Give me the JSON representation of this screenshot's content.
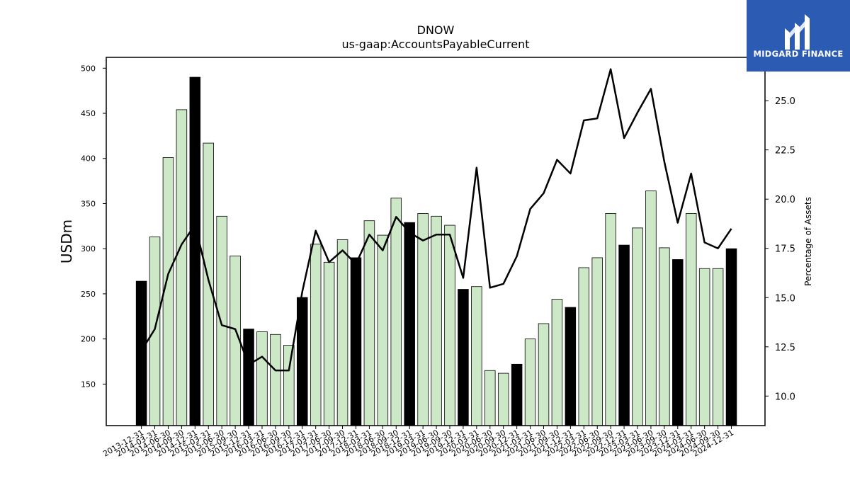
{
  "chart_data": {
    "type": "bar+line",
    "title": "DNOW",
    "subtitle": "us-gaap:AccountsPayableCurrent",
    "ylabel": "USDm",
    "y2label": "Percentage of Assets",
    "ylim": [
      104,
      512
    ],
    "y2lim": [
      8.5,
      27.2
    ],
    "yticks": [
      150,
      200,
      250,
      300,
      350,
      400,
      450,
      500
    ],
    "y2ticks": [
      10.0,
      12.5,
      15.0,
      17.5,
      20.0,
      22.5,
      25.0
    ],
    "categories": [
      "2013-12-31",
      "2014-03-31",
      "2014-06-30",
      "2014-09-30",
      "2014-12-31",
      "2015-03-31",
      "2015-06-30",
      "2015-09-30",
      "2015-12-31",
      "2016-03-31",
      "2016-06-30",
      "2016-09-30",
      "2016-12-31",
      "2017-03-31",
      "2017-06-30",
      "2017-09-30",
      "2017-12-31",
      "2018-03-31",
      "2018-06-30",
      "2018-09-30",
      "2018-12-31",
      "2019-03-31",
      "2019-06-30",
      "2019-09-30",
      "2019-12-31",
      "2020-03-31",
      "2020-06-30",
      "2020-09-30",
      "2020-12-31",
      "2021-03-31",
      "2021-06-30",
      "2021-09-30",
      "2021-12-31",
      "2022-03-31",
      "2022-06-30",
      "2022-09-30",
      "2022-12-31",
      "2023-03-31",
      "2023-06-30",
      "2023-09-30",
      "2023-12-31",
      "2024-03-31",
      "2024-06-30",
      "2024-09-30",
      "2024-12-31"
    ],
    "series": [
      {
        "kind": "bar",
        "values": [
          264,
          313,
          401,
          454,
          490,
          417,
          336,
          292,
          211,
          208,
          205,
          193,
          246,
          305,
          285,
          310,
          290,
          331,
          315,
          356,
          329,
          339,
          336,
          326,
          255,
          258,
          165,
          162,
          172,
          200,
          217,
          244,
          235,
          279,
          290,
          339,
          304,
          323,
          364,
          301,
          288,
          339,
          278,
          278,
          300
        ],
        "highlight": [
          true,
          false,
          false,
          false,
          true,
          false,
          false,
          false,
          true,
          false,
          false,
          false,
          true,
          false,
          false,
          false,
          true,
          false,
          false,
          false,
          true,
          false,
          false,
          false,
          true,
          false,
          false,
          false,
          true,
          false,
          false,
          false,
          true,
          false,
          false,
          false,
          true,
          false,
          false,
          false,
          true,
          false,
          false,
          false,
          true
        ]
      },
      {
        "kind": "line",
        "axis": "right",
        "values": [
          12.3,
          13.4,
          16.2,
          17.7,
          18.7,
          15.9,
          13.6,
          13.4,
          11.6,
          12.0,
          11.3,
          11.3,
          15.3,
          18.4,
          16.8,
          17.4,
          16.7,
          18.2,
          17.4,
          19.1,
          18.3,
          17.9,
          18.2,
          18.2,
          16.0,
          21.6,
          15.5,
          15.7,
          17.1,
          19.5,
          20.3,
          22.0,
          21.3,
          24.0,
          24.1,
          26.6,
          23.1,
          24.4,
          25.6,
          21.9,
          18.8,
          21.3,
          17.8,
          17.5,
          18.5
        ]
      }
    ],
    "colors": {
      "bar_normal": "#cce8c6",
      "bar_highlight": "#000000",
      "line": "#000000"
    },
    "grid": false
  },
  "logo": {
    "text": "MIDGARD FINANCE",
    "bg": "#2c5bb3"
  }
}
